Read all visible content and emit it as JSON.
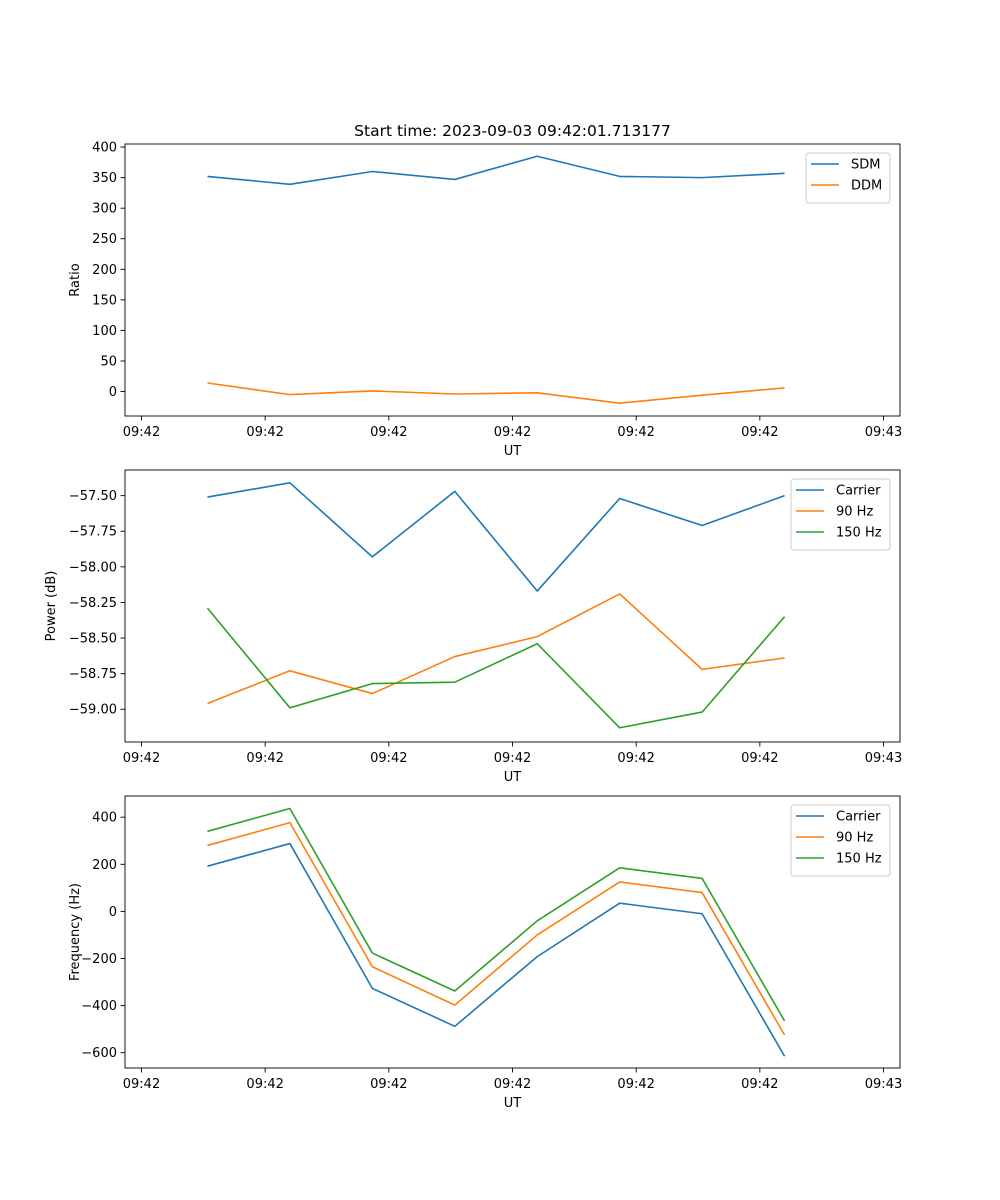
{
  "title": "Start time: 2023-09-03 09:42:01.713177",
  "chart_data": [
    {
      "type": "line",
      "xlabel": "UT",
      "ylabel": "Ratio",
      "xticks": [
        "09:42",
        "09:42",
        "09:42",
        "09:42",
        "09:42",
        "09:42",
        "09:43"
      ],
      "yticks": [
        0,
        50,
        100,
        150,
        200,
        250,
        300,
        350,
        400
      ],
      "ylim": [
        -40,
        405
      ],
      "yformat": "int",
      "x": [
        1,
        2,
        3,
        4,
        5,
        6,
        7,
        8
      ],
      "series": [
        {
          "name": "SDM",
          "color": "#1f77b4",
          "values": [
            352,
            339,
            360,
            347,
            385,
            352,
            350,
            357
          ]
        },
        {
          "name": "DDM",
          "color": "#ff7f0e",
          "values": [
            14,
            -5,
            1,
            -4,
            -2,
            -19,
            -6,
            6
          ]
        }
      ]
    },
    {
      "type": "line",
      "xlabel": "UT",
      "ylabel": "Power (dB)",
      "xticks": [
        "09:42",
        "09:42",
        "09:42",
        "09:42",
        "09:42",
        "09:42",
        "09:43"
      ],
      "yticks": [
        -59.0,
        -58.75,
        -58.5,
        -58.25,
        -58.0,
        -57.75,
        -57.5
      ],
      "ylim": [
        -59.23,
        -57.32
      ],
      "yformat": "fixed2",
      "x": [
        1,
        2,
        3,
        4,
        5,
        6,
        7,
        8
      ],
      "series": [
        {
          "name": "Carrier",
          "color": "#1f77b4",
          "values": [
            -57.51,
            -57.41,
            -57.93,
            -57.47,
            -58.17,
            -57.52,
            -57.71,
            -57.5
          ]
        },
        {
          "name": "90 Hz",
          "color": "#ff7f0e",
          "values": [
            -58.96,
            -58.73,
            -58.89,
            -58.63,
            -58.49,
            -58.19,
            -58.72,
            -58.64
          ]
        },
        {
          "name": "150 Hz",
          "color": "#2ca02c",
          "values": [
            -58.29,
            -58.99,
            -58.82,
            -58.81,
            -58.54,
            -59.13,
            -59.02,
            -58.35
          ]
        }
      ]
    },
    {
      "type": "line",
      "xlabel": "UT",
      "ylabel": "Frequency (Hz)",
      "xticks": [
        "09:42",
        "09:42",
        "09:42",
        "09:42",
        "09:42",
        "09:42",
        "09:43"
      ],
      "yticks": [
        -600,
        -400,
        -200,
        0,
        200,
        400
      ],
      "ylim": [
        -665,
        490
      ],
      "yformat": "int",
      "x": [
        1,
        2,
        3,
        4,
        5,
        6,
        7,
        8
      ],
      "series": [
        {
          "name": "Carrier",
          "color": "#1f77b4",
          "values": [
            192,
            288,
            -327,
            -488,
            -192,
            35,
            -10,
            -615
          ]
        },
        {
          "name": "90 Hz",
          "color": "#ff7f0e",
          "values": [
            280,
            377,
            -235,
            -398,
            -100,
            125,
            80,
            -525
          ]
        },
        {
          "name": "150 Hz",
          "color": "#2ca02c",
          "values": [
            340,
            437,
            -177,
            -338,
            -40,
            185,
            140,
            -465
          ]
        }
      ]
    }
  ]
}
